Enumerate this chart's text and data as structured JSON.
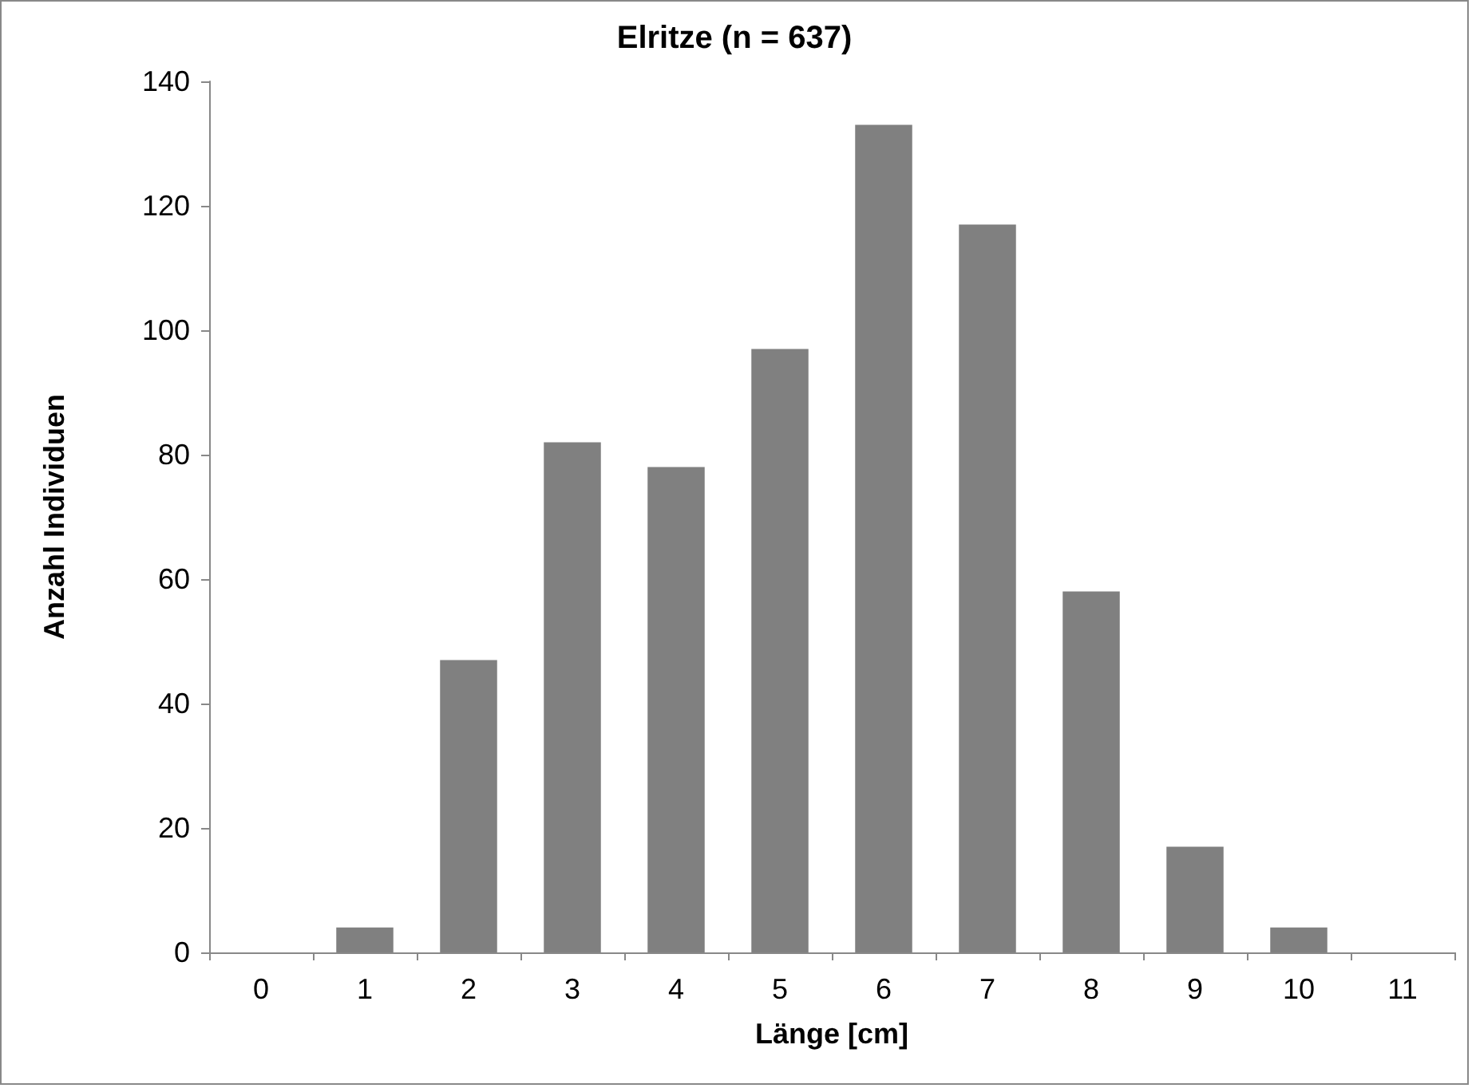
{
  "chart_data": {
    "type": "bar",
    "title": "Elritze (n = 637)",
    "xlabel": "Länge [cm]",
    "ylabel": "Anzahl Individuen",
    "categories": [
      "0",
      "1",
      "2",
      "3",
      "4",
      "5",
      "6",
      "7",
      "8",
      "9",
      "10",
      "11"
    ],
    "values": [
      0,
      4,
      47,
      82,
      78,
      97,
      133,
      117,
      58,
      17,
      4,
      0
    ],
    "color": "#808080",
    "ylim": [
      0,
      140
    ],
    "yticks": [
      0,
      20,
      40,
      60,
      80,
      100,
      120,
      140
    ],
    "grid": false
  }
}
